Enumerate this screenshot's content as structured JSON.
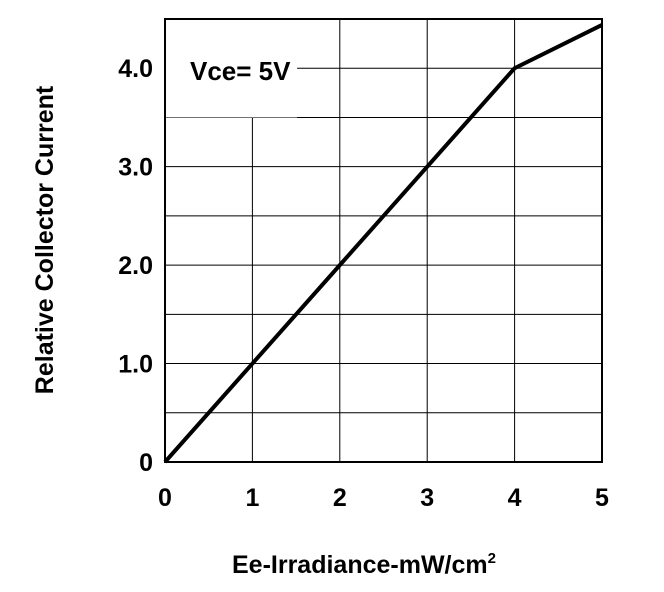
{
  "chart_data": {
    "type": "line",
    "title": "",
    "xlabel": "Ee-Irradiance-mW/cm",
    "xlabel_sup": "2",
    "ylabel": "Relative Collector Current",
    "xlim": [
      0,
      5
    ],
    "ylim": [
      0,
      4.5
    ],
    "x_ticks": [
      "0",
      "1",
      "2",
      "3",
      "4",
      "5"
    ],
    "y_ticks": [
      "0",
      "1.0",
      "2.0",
      "3.0",
      "4.0"
    ],
    "grid": true,
    "annotation": "Vce= 5V",
    "series": [
      {
        "x": [
          0,
          1,
          2,
          3,
          4,
          5
        ],
        "y": [
          0,
          1.0,
          2.0,
          3.0,
          4.0,
          4.44
        ]
      }
    ]
  }
}
